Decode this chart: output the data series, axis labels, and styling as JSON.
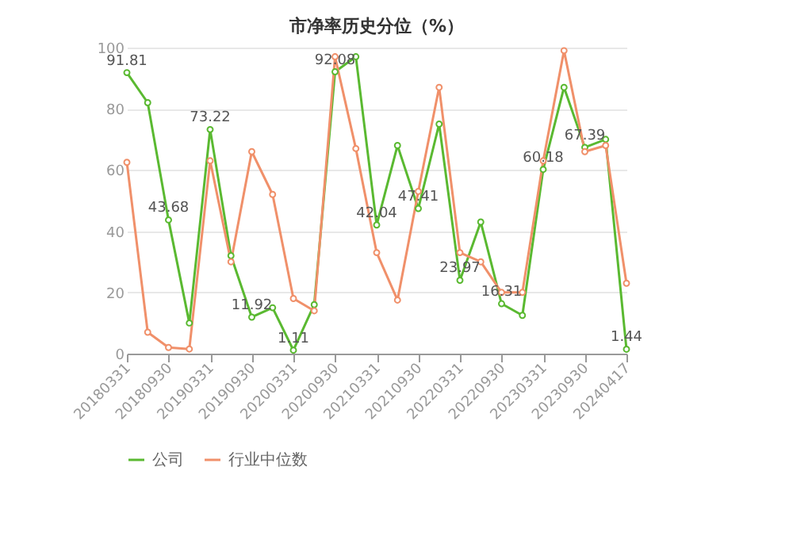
{
  "chart_data": {
    "type": "line",
    "title": "市净率历史分位（%）",
    "categories": [
      "20180331",
      null,
      "20180930",
      null,
      "20190331",
      null,
      "20190930",
      null,
      "20200331",
      null,
      "20200930",
      null,
      "20210331",
      null,
      "20210930",
      null,
      "20220331",
      null,
      "20220930",
      null,
      "20230331",
      null,
      "20230930",
      null,
      "20240417"
    ],
    "series": [
      {
        "name": "公司",
        "color": "#5ab931",
        "values": [
          91.81,
          82,
          43.68,
          10,
          73.22,
          32,
          11.92,
          15,
          1.11,
          16,
          92.08,
          97,
          42.04,
          68,
          47.41,
          75,
          23.97,
          43,
          16.31,
          12.5,
          60.18,
          87,
          67.39,
          70,
          1.44
        ],
        "value_labels": [
          "91.81",
          null,
          "43.68",
          null,
          "73.22",
          null,
          "11.92",
          null,
          "1.11",
          null,
          "92.08",
          null,
          "42.04",
          null,
          "47.41",
          null,
          "23.97",
          null,
          "16.31",
          null,
          "60.18",
          null,
          "67.39",
          null,
          "1.44"
        ]
      },
      {
        "name": "行业中位数",
        "color": "#f0906a",
        "values": [
          62.5,
          7,
          2,
          1.5,
          63,
          30,
          66,
          52,
          18,
          14,
          97,
          67,
          33,
          17.5,
          53,
          87,
          33,
          30,
          20,
          20,
          63,
          99,
          66,
          68,
          23
        ]
      }
    ],
    "ylim": [
      0,
      100
    ],
    "yticks": [
      0,
      20,
      40,
      60,
      80,
      100
    ],
    "grid": "y",
    "legend": "bottom",
    "marker": "circle",
    "line_style": "solid"
  }
}
